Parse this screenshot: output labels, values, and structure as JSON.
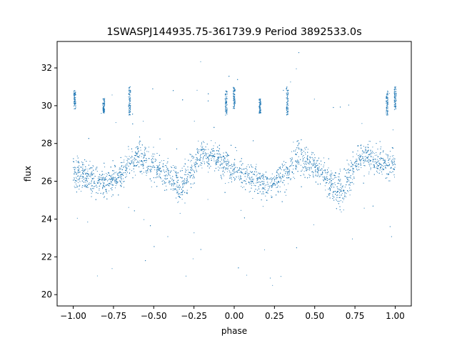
{
  "chart_data": {
    "type": "scatter",
    "title": "1SWASPJ144935.75-361739.9 Period 3892533.0s",
    "xlabel": "phase",
    "ylabel": "flux",
    "xlim": [
      -1.1,
      1.1
    ],
    "ylim": [
      19.4,
      33.4
    ],
    "xticks": [
      -1.0,
      -0.75,
      -0.5,
      -0.25,
      0.0,
      0.25,
      0.5,
      0.75,
      1.0
    ],
    "xtick_labels": [
      "−1.00",
      "−0.75",
      "−0.50",
      "−0.25",
      "0.00",
      "0.25",
      "0.50",
      "0.75",
      "1.00"
    ],
    "yticks": [
      20,
      22,
      24,
      26,
      28,
      30,
      32
    ],
    "ytick_labels": [
      "20",
      "22",
      "24",
      "26",
      "28",
      "30",
      "32"
    ],
    "grid": false,
    "legend": "none",
    "marker_color": "#1f77b4",
    "series": [
      {
        "phase_range": [
          -1.0,
          1.0
        ],
        "profile": {
          "x": [
            -1.0,
            -0.9,
            -0.8,
            -0.7,
            -0.6,
            -0.5,
            -0.4,
            -0.33,
            -0.25,
            -0.2,
            -0.1,
            0.0,
            0.1,
            0.2,
            0.25,
            0.33,
            0.4,
            0.5,
            0.6,
            0.67,
            0.75,
            0.8,
            0.9,
            1.0
          ],
          "center_flux": [
            26.5,
            26.2,
            25.8,
            26.4,
            27.4,
            26.8,
            26.2,
            25.6,
            26.8,
            27.5,
            27.2,
            26.6,
            26.2,
            25.8,
            26.0,
            26.4,
            27.4,
            26.8,
            26.0,
            25.4,
            26.8,
            27.5,
            27.0,
            26.8
          ],
          "spread": [
            1.0,
            1.0,
            1.0,
            1.0,
            1.1,
            1.0,
            1.0,
            1.3,
            1.1,
            1.0,
            1.0,
            1.0,
            1.0,
            1.0,
            1.0,
            1.0,
            1.1,
            1.0,
            1.1,
            1.3,
            1.0,
            1.0,
            1.0,
            1.0
          ]
        },
        "outlier_clumps": [
          {
            "phase": -0.99,
            "flux_range": [
              29.8,
              30.8
            ]
          },
          {
            "phase": -0.81,
            "flux_range": [
              29.6,
              30.4
            ]
          },
          {
            "phase": -0.65,
            "flux_range": [
              29.5,
              31.0
            ]
          },
          {
            "phase": -0.05,
            "flux_range": [
              29.5,
              30.8
            ]
          },
          {
            "phase": 0.0,
            "flux_range": [
              29.8,
              31.0
            ]
          },
          {
            "phase": 0.16,
            "flux_range": [
              29.6,
              30.4
            ]
          },
          {
            "phase": 0.33,
            "flux_range": [
              29.5,
              31.0
            ]
          },
          {
            "phase": 0.95,
            "flux_range": [
              29.5,
              30.8
            ]
          },
          {
            "phase": 1.0,
            "flux_range": [
              29.8,
              31.0
            ]
          }
        ]
      }
    ]
  }
}
